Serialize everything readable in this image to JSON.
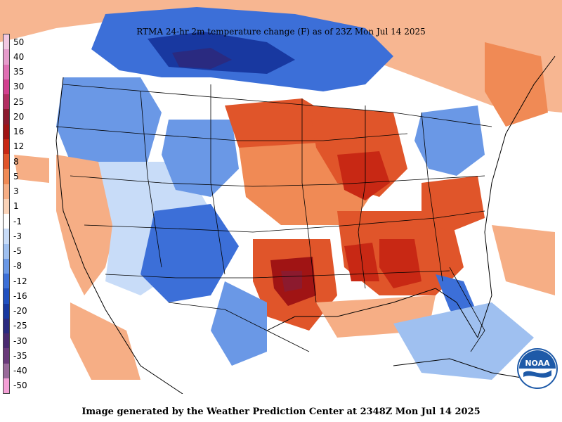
{
  "map": {
    "title": "RTMA 24-hr 2m temperature change (F) as of 23Z Mon Jul 14 2025",
    "footer": "Image generated by the Weather Prediction Center at 2348Z Mon Jul 14 2025",
    "logo_text": "NOAA",
    "legend": [
      {
        "label": "50",
        "color": "#f2c8e2"
      },
      {
        "label": "40",
        "color": "#e69ccc"
      },
      {
        "label": "35",
        "color": "#e070b4"
      },
      {
        "label": "30",
        "color": "#d2408f"
      },
      {
        "label": "25",
        "color": "#b32e62"
      },
      {
        "label": "20",
        "color": "#8c1a2e"
      },
      {
        "label": "16",
        "color": "#a01414"
      },
      {
        "label": "12",
        "color": "#c82814"
      },
      {
        "label": "8",
        "color": "#e0552a"
      },
      {
        "label": "5",
        "color": "#f08a55"
      },
      {
        "label": "3",
        "color": "#f6ae85"
      },
      {
        "label": "1",
        "color": "#fad3b8"
      },
      {
        "label": "-1",
        "color": "#ffffff"
      },
      {
        "label": "-3",
        "color": "#c8dcf8"
      },
      {
        "label": "-5",
        "color": "#9fc0f0"
      },
      {
        "label": "-8",
        "color": "#6a98e6"
      },
      {
        "label": "-12",
        "color": "#3c6fd8"
      },
      {
        "label": "-16",
        "color": "#2050c0"
      },
      {
        "label": "-20",
        "color": "#1838a0"
      },
      {
        "label": "-25",
        "color": "#2a2a80"
      },
      {
        "label": "-30",
        "color": "#4a2a70"
      },
      {
        "label": "-35",
        "color": "#6a3a7a"
      },
      {
        "label": "-40",
        "color": "#9a6a9a"
      },
      {
        "label": "-50",
        "color": "#f4a0d6"
      }
    ]
  }
}
